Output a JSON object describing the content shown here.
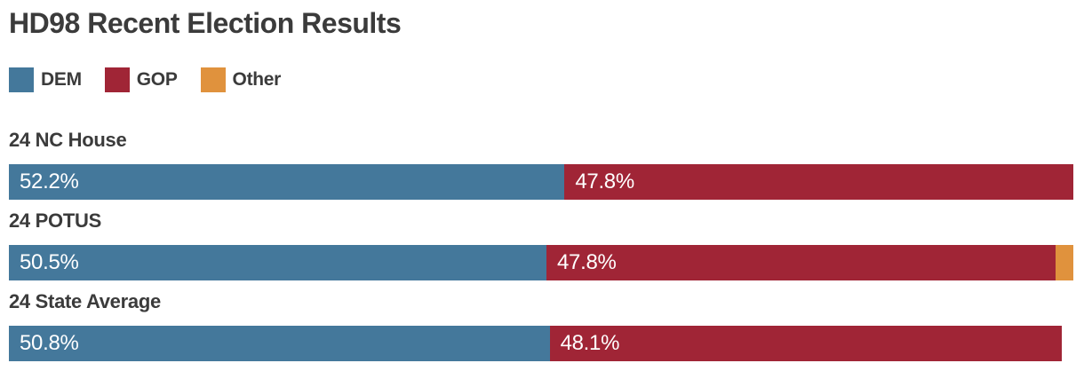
{
  "title": "HD98 Recent Election Results",
  "colors": {
    "dem": "#44789b",
    "gop": "#a02536",
    "other": "#e0923d",
    "heading_text": "#3b3b3b",
    "bar_value_text": "#ffffff",
    "background": "#ffffff"
  },
  "legend": [
    {
      "label": "DEM",
      "color": "dem"
    },
    {
      "label": "GOP",
      "color": "gop"
    },
    {
      "label": "Other",
      "color": "other"
    }
  ],
  "rows": [
    {
      "label": "24 NC House",
      "segments": [
        {
          "series": "DEM",
          "pct": 52.2,
          "value_label": "52.2%",
          "color": "dem"
        },
        {
          "series": "GOP",
          "pct": 47.8,
          "value_label": "47.8%",
          "color": "gop"
        }
      ]
    },
    {
      "label": "24 POTUS",
      "segments": [
        {
          "series": "DEM",
          "pct": 50.5,
          "value_label": "50.5%",
          "color": "dem"
        },
        {
          "series": "GOP",
          "pct": 47.8,
          "value_label": "47.8%",
          "color": "gop"
        },
        {
          "series": "Other",
          "pct": 1.7,
          "value_label": "",
          "color": "other"
        }
      ]
    },
    {
      "label": "24 State Average",
      "segments": [
        {
          "series": "DEM",
          "pct": 50.8,
          "value_label": "50.8%",
          "color": "dem"
        },
        {
          "series": "GOP",
          "pct": 48.1,
          "value_label": "48.1%",
          "color": "gop"
        }
      ]
    }
  ],
  "chart_data": {
    "type": "bar",
    "variant": "horizontal-stacked",
    "title": "HD98 Recent Election Results",
    "categories": [
      "24 NC House",
      "24 POTUS",
      "24 State Average"
    ],
    "series": [
      {
        "name": "DEM",
        "color": "#44789b",
        "values": [
          52.2,
          50.5,
          50.8
        ]
      },
      {
        "name": "GOP",
        "color": "#a02536",
        "values": [
          47.8,
          47.8,
          48.1
        ]
      },
      {
        "name": "Other",
        "color": "#e0923d",
        "values": [
          null,
          1.7,
          null
        ]
      }
    ],
    "value_labels": [
      [
        "52.2%",
        "47.8%",
        null
      ],
      [
        "50.5%",
        "47.8%",
        null
      ],
      [
        "50.8%",
        "48.1%",
        null
      ]
    ],
    "xlim": [
      0,
      100
    ],
    "grid": false,
    "axis_ticks": false,
    "legend_position": "top-left",
    "value_label_position": "inside-start"
  }
}
